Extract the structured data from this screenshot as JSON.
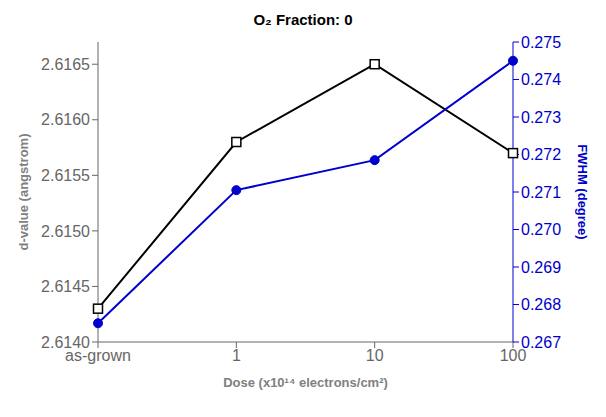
{
  "chart_data": {
    "type": "line",
    "title": "O₂ Fraction: 0",
    "x_label": "Dose (x10¹⁴ electrons/cm²)",
    "y_label": "d-value (angstrom)",
    "y2_label": "FWHM (degree)",
    "categories": [
      "as-grown",
      "1",
      "10",
      "100"
    ],
    "series": [
      {
        "color": "#000000",
        "marker": "square",
        "values": [
          2.6143,
          2.6158,
          2.6165,
          2.6157
        ]
      },
      {
        "color": "#0000cc",
        "marker": "circle",
        "axis": "y2",
        "values": [
          0.2675,
          0.27105,
          0.27185,
          0.2745
        ]
      }
    ],
    "ylim": [
      2.614,
      2.6167
    ],
    "yticks": [
      {
        "value": 2.614,
        "label": "2.6140"
      },
      2.6145,
      {
        "value": 2.615,
        "label": "2.6150"
      },
      2.6155,
      {
        "value": 2.616,
        "label": "2.6160"
      },
      2.6165
    ],
    "y2lim": [
      0.267,
      0.275
    ],
    "y2ticks": [
      0.267,
      0.268,
      0.269,
      {
        "value": 0.27,
        "label": "0.270"
      },
      0.271,
      0.272,
      0.273,
      0.274,
      0.275
    ],
    "grid": false
  }
}
